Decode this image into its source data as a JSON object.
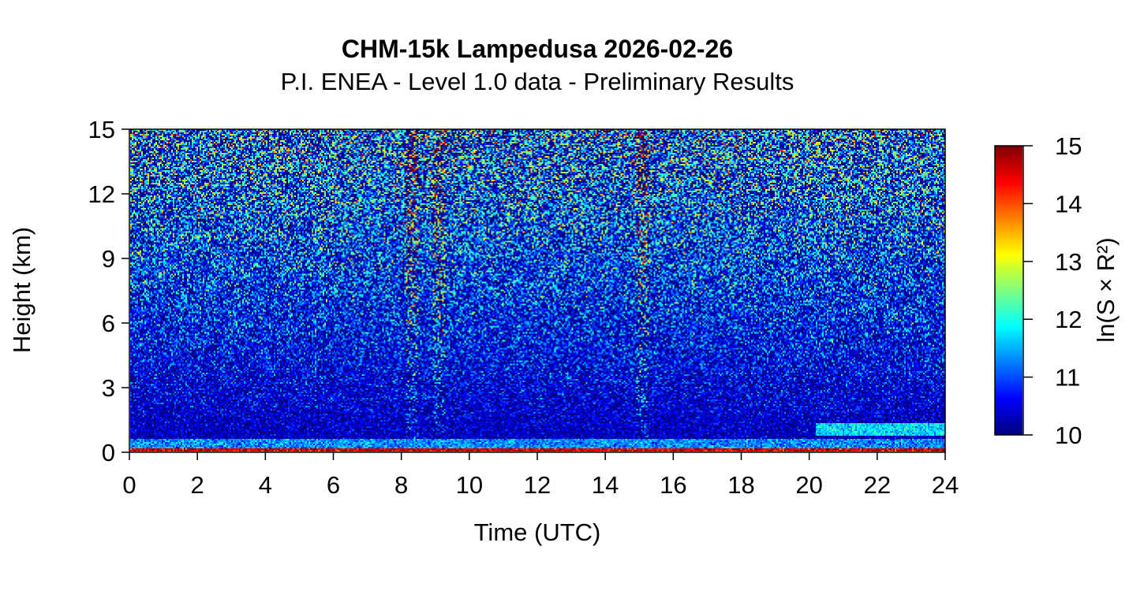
{
  "header": {
    "title": "CHM-15k Lampedusa 2026-02-26",
    "subtitle": "P.I. ENEA - Level 1.0 data - Preliminary Results"
  },
  "colors": {
    "jet": [
      "#00007f",
      "#0000ff",
      "#007fff",
      "#00ffff",
      "#7fff7f",
      "#ffff00",
      "#ff7f00",
      "#ff0000",
      "#7f0000"
    ]
  },
  "chart_data": {
    "type": "heatmap",
    "title": "CHM-15k Lampedusa 2026-02-26",
    "subtitle": "P.I. ENEA - Level 1.0 data - Preliminary Results",
    "xlabel": "Time (UTC)",
    "ylabel": "Height (km)",
    "colorbar_label": "ln(S × R²)",
    "xlim": [
      0,
      24
    ],
    "ylim": [
      0,
      15
    ],
    "x_ticks": [
      0,
      2,
      4,
      6,
      8,
      10,
      12,
      14,
      16,
      18,
      20,
      22,
      24
    ],
    "y_ticks": [
      0,
      3,
      6,
      9,
      12,
      15
    ],
    "clim": [
      10,
      15
    ],
    "colorbar_ticks": [
      10,
      11,
      12,
      13,
      14,
      15
    ],
    "colormap": "jet",
    "features": {
      "surface_layer_height_km": 0.15,
      "aerosol_layer_top_km": 0.6,
      "elevated_layer_after_20utc_km": [
        0.7,
        1.3
      ],
      "noisy_columns_utc": [
        8.3,
        9.1,
        15.1
      ]
    }
  }
}
